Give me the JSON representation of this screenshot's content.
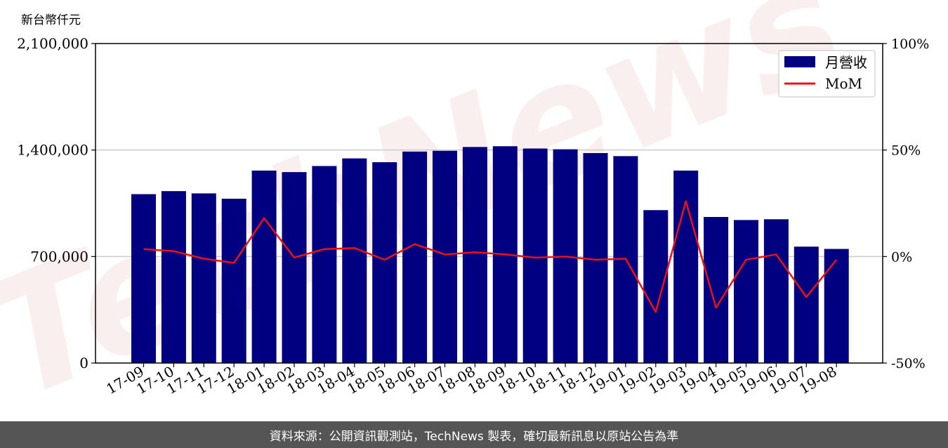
{
  "unit_label": "新台幣仟元",
  "footer_text": "資料來源：公開資訊觀測站，TechNews 製表，確切最新訊息以原站公告為準",
  "watermark": "TechNews",
  "colors": {
    "bar": "#000080",
    "line": "#ee1111",
    "grid": "#cccccc",
    "footer_bg": "#555555"
  },
  "chart_data": {
    "type": "bar",
    "categories": [
      "17-09",
      "17-10",
      "17-11",
      "17-12",
      "18-01",
      "18-02",
      "18-03",
      "18-04",
      "18-05",
      "18-06",
      "18-07",
      "18-08",
      "18-09",
      "18-10",
      "18-11",
      "18-12",
      "19-01",
      "19-02",
      "19-03",
      "19-04",
      "19-05",
      "19-06",
      "19-07",
      "19-08"
    ],
    "series": [
      {
        "name": "月營收",
        "type": "bar",
        "axis": "left",
        "values": [
          1110000,
          1130000,
          1115000,
          1080000,
          1265000,
          1255000,
          1295000,
          1345000,
          1320000,
          1390000,
          1395000,
          1420000,
          1425000,
          1410000,
          1405000,
          1380000,
          1360000,
          1005000,
          1265000,
          960000,
          940000,
          945000,
          765000,
          750000
        ]
      },
      {
        "name": "MoM",
        "type": "line",
        "axis": "right",
        "values": [
          3.5,
          2.5,
          -1.0,
          -3.0,
          18.0,
          -0.5,
          3.5,
          4.0,
          -1.5,
          5.8,
          1.0,
          2.0,
          1.0,
          -0.5,
          0.0,
          -1.5,
          -1.0,
          -26.0,
          26.0,
          -24.0,
          -1.5,
          1.0,
          -19.0,
          -1.5
        ]
      }
    ],
    "y_left": {
      "ylim": [
        0,
        2100000
      ],
      "ticks": [
        "0",
        "700,000",
        "1,400,000",
        "2,100,000"
      ],
      "tick_values": [
        0,
        700000,
        1400000,
        2100000
      ]
    },
    "y_right": {
      "ylim": [
        -50,
        100
      ],
      "ticks": [
        "-50%",
        "0%",
        "50%",
        "100%"
      ],
      "tick_values": [
        -50,
        0,
        50,
        100
      ]
    },
    "grid": true,
    "legend_placement": "top-right"
  }
}
